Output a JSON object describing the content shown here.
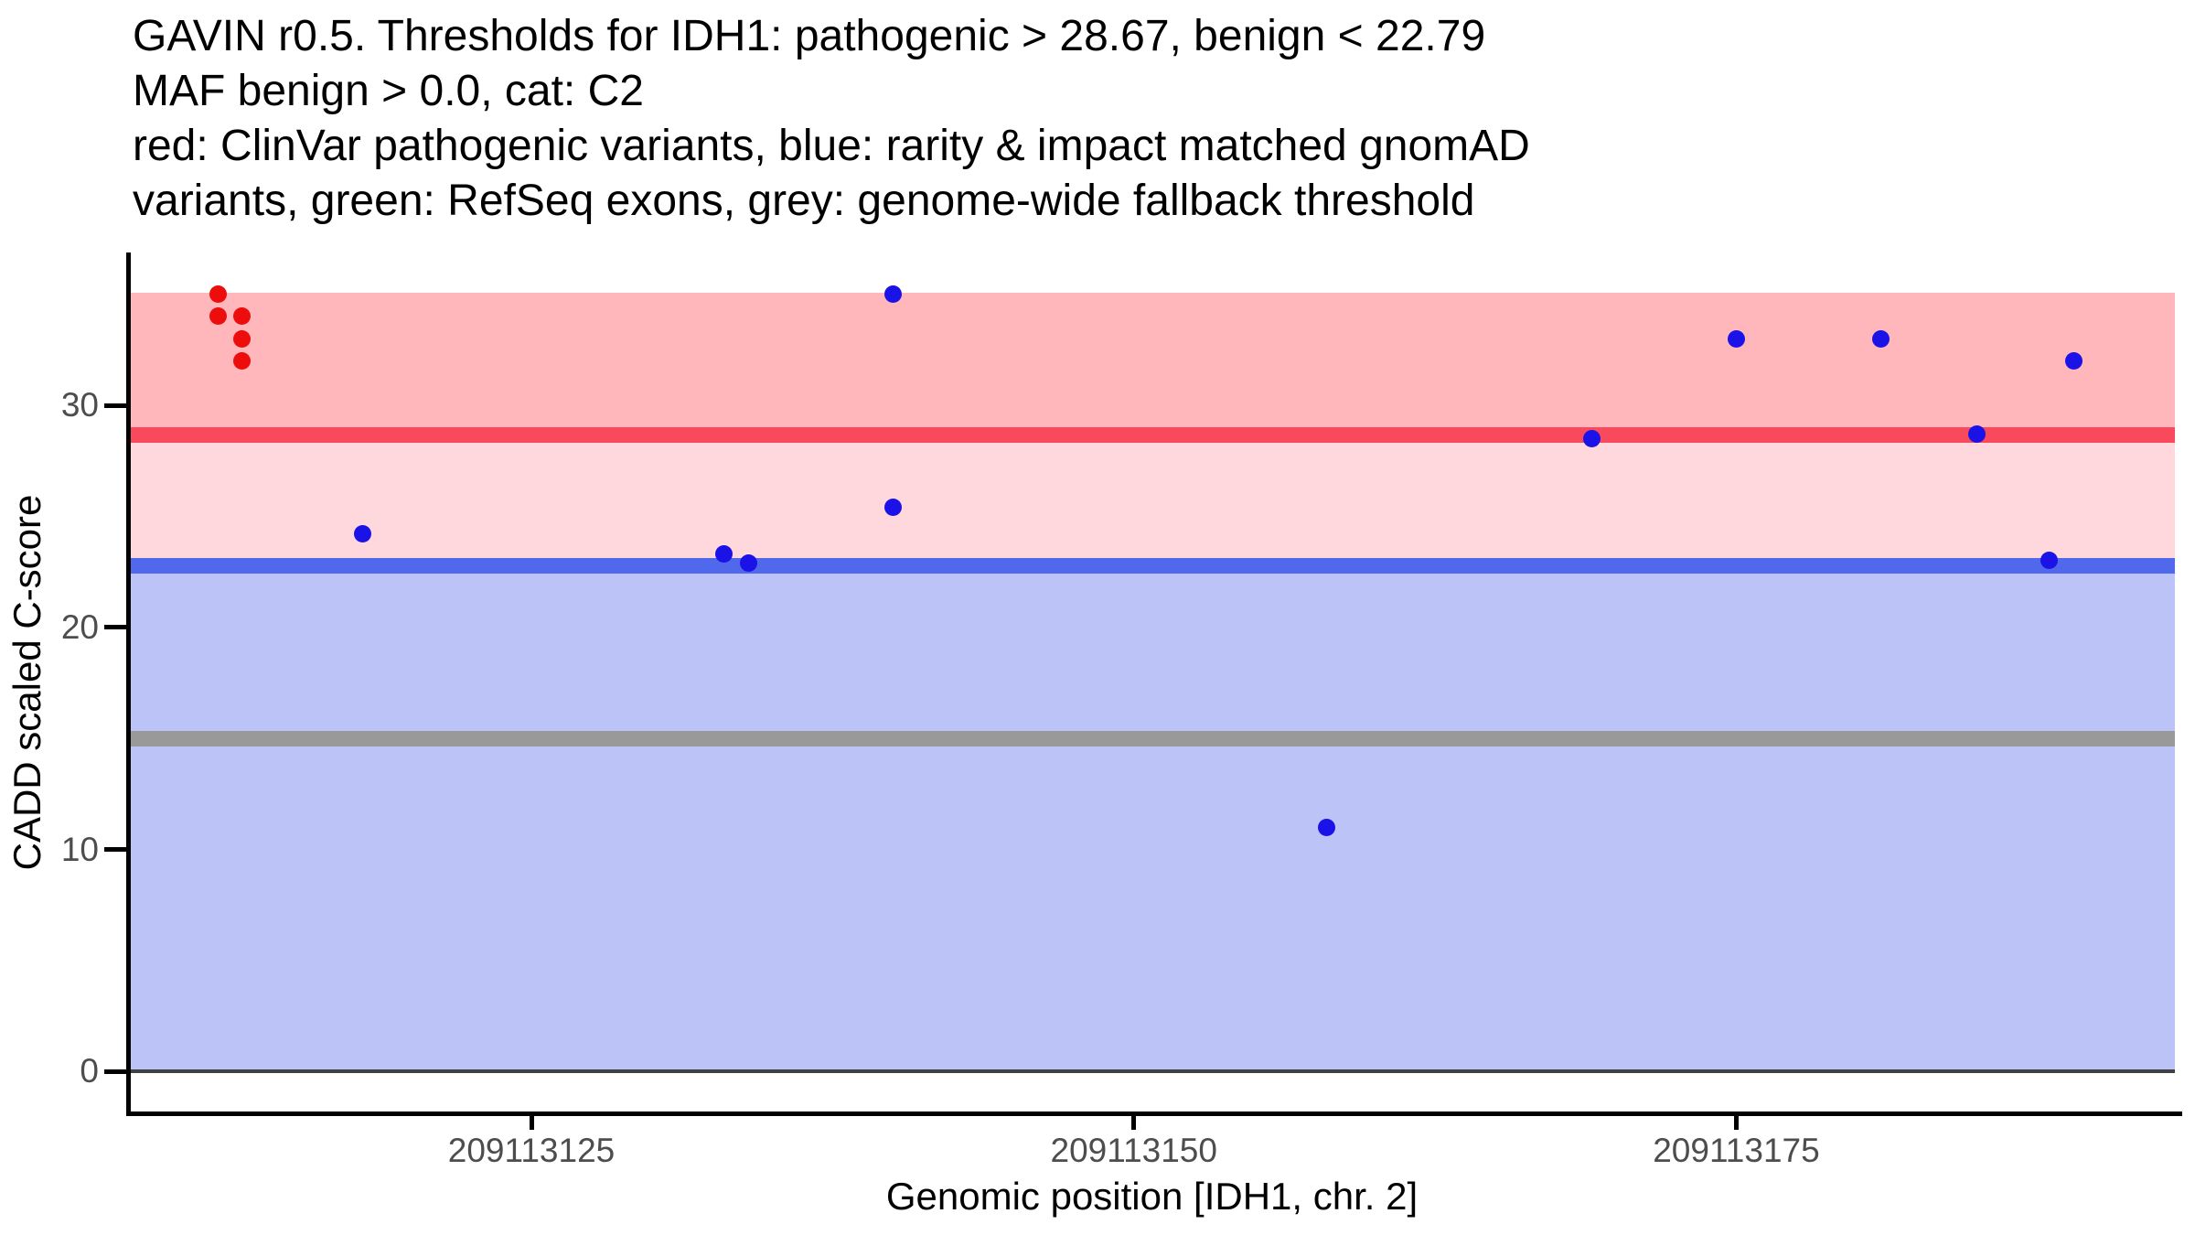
{
  "title": {
    "lines": [
      "GAVIN r0.5. Thresholds for IDH1: pathogenic > 28.67, benign < 22.79",
      "MAF benign > 0.0, cat: C2",
      "red: ClinVar pathogenic variants, blue: rarity & impact matched gnomAD",
      "variants, green: RefSeq exons, grey: genome-wide fallback threshold"
    ]
  },
  "chart_data": {
    "type": "scatter",
    "xlabel": "Genomic position [IDH1, chr. 2]",
    "ylabel": "CADD scaled C-score",
    "x_ticks": [
      209113125,
      209113150,
      209113175
    ],
    "y_ticks": [
      0,
      10,
      20,
      30
    ],
    "x_range": [
      209113108.3,
      209113193.2
    ],
    "y_range": [
      -1.8,
      36.8
    ],
    "grid": "off",
    "legend": "none (described in title text)",
    "thresholds": {
      "pathogenic": 28.67,
      "benign": 22.79,
      "genome_wide_fallback": 15,
      "zero_line": 0,
      "band_top": 35.05
    },
    "series": [
      {
        "name": "ClinVar pathogenic variants",
        "color": "#ee0d0d",
        "marker": "circle",
        "points": [
          [
            209113112,
            35.0
          ],
          [
            209113112,
            34.0
          ],
          [
            209113113,
            34.0
          ],
          [
            209113113,
            33.0
          ],
          [
            209113113,
            32.0
          ]
        ]
      },
      {
        "name": "rarity & impact matched gnomAD variants",
        "color": "#1b12e8",
        "marker": "circle",
        "points": [
          [
            209113118,
            24.2
          ],
          [
            209113133,
            23.3
          ],
          [
            209113134,
            22.9
          ],
          [
            209113140,
            35.0
          ],
          [
            209113140,
            25.4
          ],
          [
            209113158,
            11.0
          ],
          [
            209113169,
            28.5
          ],
          [
            209113175,
            33.0
          ],
          [
            209113181,
            33.0
          ],
          [
            209113185,
            28.7
          ],
          [
            209113188,
            23.0
          ],
          [
            209113189,
            32.0
          ]
        ]
      }
    ],
    "colors": {
      "pathogenic_band": "#ffb7bc",
      "uncertain_band": "#ffd8dd",
      "benign_band": "#bcc3f7",
      "pathogenic_line": "#f8495d",
      "benign_line": "#5068eb",
      "fallback_line": "#999999",
      "zero_line": "#404040",
      "axis_line": "#000000",
      "tick_label": "#4d4d4d"
    }
  }
}
